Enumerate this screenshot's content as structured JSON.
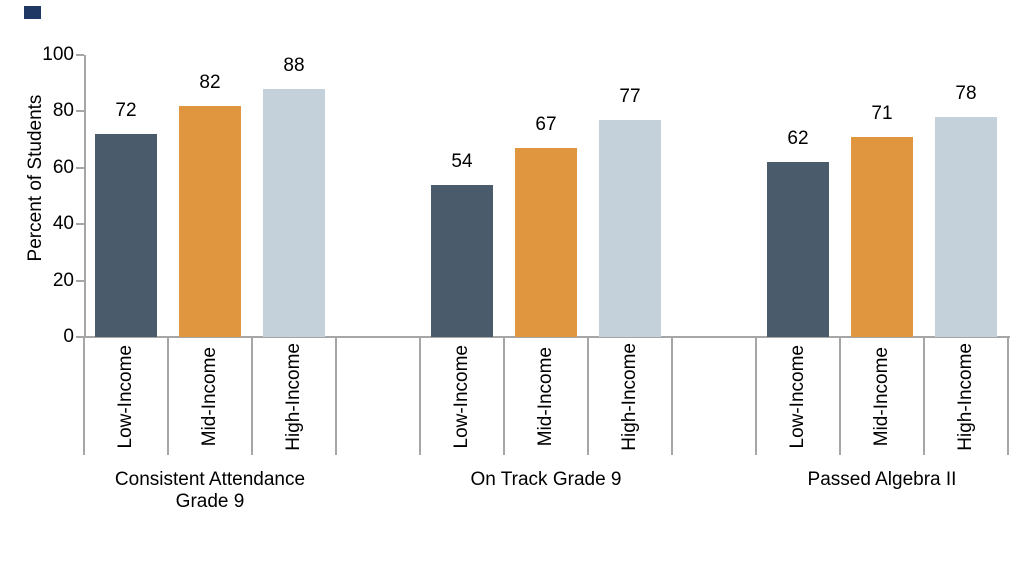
{
  "corner_mark_color": "#1F3864",
  "chart_data": {
    "type": "bar",
    "title": "",
    "ylabel": "Percent of Students",
    "xlabel": "",
    "ylim": [
      0,
      100
    ],
    "ytick_values": [
      0,
      20,
      40,
      60,
      80,
      100
    ],
    "ytick_labels": [
      "0",
      "20",
      "40",
      "60",
      "80",
      "100"
    ],
    "grid": false,
    "legend_position": "none",
    "bar_labels": [
      "Low-Income",
      "Mid-Income",
      "High-Income"
    ],
    "bar_colors": [
      "#4A5C6B",
      "#E0963E",
      "#C4D0DA"
    ],
    "axis_color": "#A6A6A6",
    "text_color": "#000000",
    "groups": [
      {
        "label": "Consistent Attendance\nGrade 9",
        "categories": [
          "Low-Income",
          "Mid-Income",
          "High-Income"
        ],
        "values": [
          72,
          82,
          88
        ],
        "value_labels": [
          "72",
          "82",
          "88"
        ]
      },
      {
        "label": "On Track Grade 9",
        "categories": [
          "Low-Income",
          "Mid-Income",
          "High-Income"
        ],
        "values": [
          54,
          67,
          77
        ],
        "value_labels": [
          "54",
          "67",
          "77"
        ]
      },
      {
        "label": "Passed Algebra II",
        "categories": [
          "Low-Income",
          "Mid-Income",
          "High-Income"
        ],
        "values": [
          62,
          71,
          78
        ],
        "value_labels": [
          "62",
          "71",
          "78"
        ]
      }
    ]
  }
}
